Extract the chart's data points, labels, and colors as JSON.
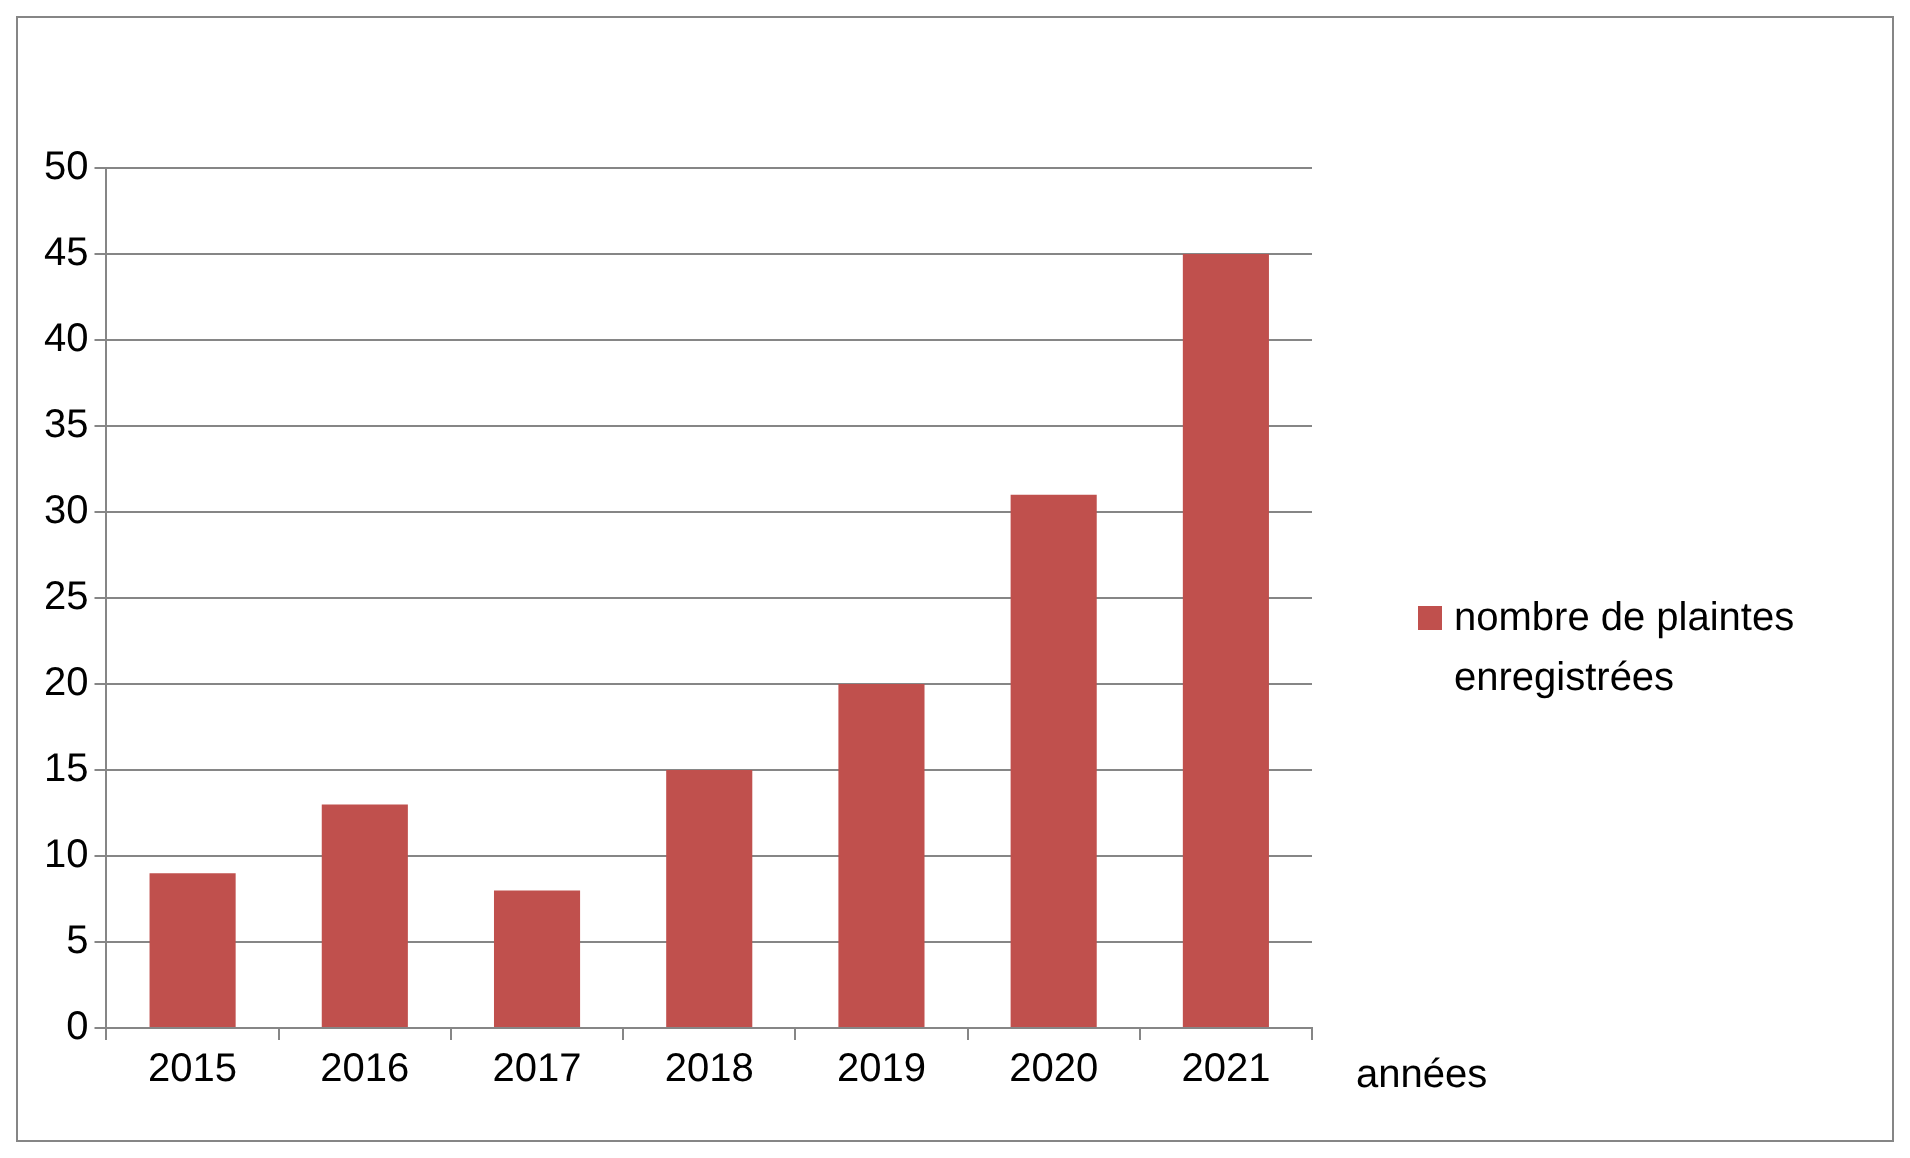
{
  "chart_data": {
    "type": "bar",
    "xlabel": "années",
    "categories": [
      "2015",
      "2016",
      "2017",
      "2018",
      "2019",
      "2020",
      "2021"
    ],
    "series": [
      {
        "name": "nombre de plaintes enregistrées",
        "color": "#c0504d",
        "values": [
          9,
          13,
          8,
          15,
          20,
          31,
          45
        ]
      }
    ],
    "ylim": [
      0,
      50
    ],
    "yticks": [
      0,
      5,
      10,
      15,
      20,
      25,
      30,
      35,
      40,
      45,
      50
    ],
    "grid": "y",
    "legend": "right"
  }
}
